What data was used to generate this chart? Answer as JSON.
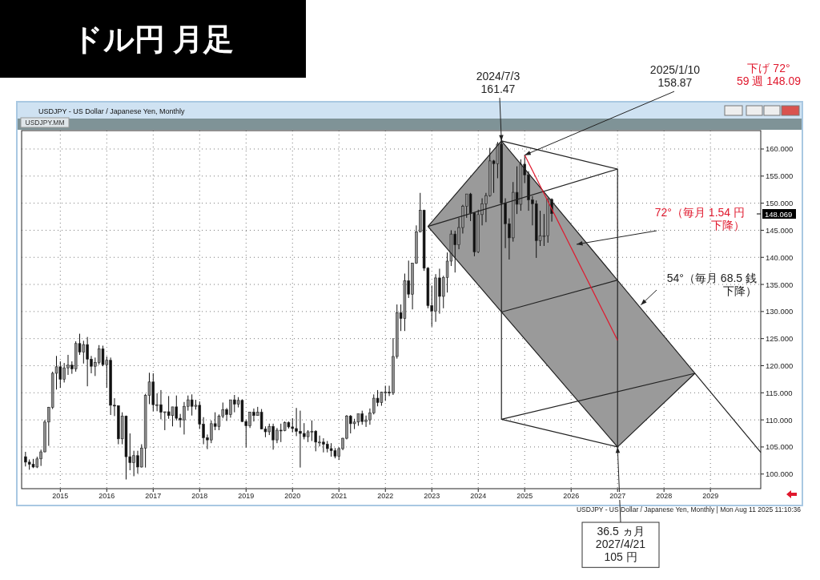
{
  "chart_data": {
    "type": "candlestick",
    "title": "ドル円 月足",
    "subtitle": "USDJPY - US Dollar / Japanese Yen, Monthly",
    "x": [
      "2014-04",
      "2014-05",
      "2014-06",
      "2014-07",
      "2014-08",
      "2014-09",
      "2014-10",
      "2014-11",
      "2014-12",
      "2015-01",
      "2015-02",
      "2015-03",
      "2015-04",
      "2015-05",
      "2015-06",
      "2015-07",
      "2015-08",
      "2015-09",
      "2015-10",
      "2015-11",
      "2015-12",
      "2016-01",
      "2016-02",
      "2016-03",
      "2016-04",
      "2016-05",
      "2016-06",
      "2016-07",
      "2016-08",
      "2016-09",
      "2016-10",
      "2016-11",
      "2016-12",
      "2017-01",
      "2017-02",
      "2017-03",
      "2017-04",
      "2017-05",
      "2017-06",
      "2017-07",
      "2017-08",
      "2017-09",
      "2017-10",
      "2017-11",
      "2017-12",
      "2018-01",
      "2018-02",
      "2018-03",
      "2018-04",
      "2018-05",
      "2018-06",
      "2018-07",
      "2018-08",
      "2018-09",
      "2018-10",
      "2018-11",
      "2018-12",
      "2019-01",
      "2019-02",
      "2019-03",
      "2019-04",
      "2019-05",
      "2019-06",
      "2019-07",
      "2019-08",
      "2019-09",
      "2019-10",
      "2019-11",
      "2019-12",
      "2020-01",
      "2020-02",
      "2020-03",
      "2020-04",
      "2020-05",
      "2020-06",
      "2020-07",
      "2020-08",
      "2020-09",
      "2020-10",
      "2020-11",
      "2020-12",
      "2021-01",
      "2021-02",
      "2021-03",
      "2021-04",
      "2021-05",
      "2021-06",
      "2021-07",
      "2021-08",
      "2021-09",
      "2021-10",
      "2021-11",
      "2021-12",
      "2022-01",
      "2022-02",
      "2022-03",
      "2022-04",
      "2022-05",
      "2022-06",
      "2022-07",
      "2022-08",
      "2022-09",
      "2022-10",
      "2022-11",
      "2022-12",
      "2023-01",
      "2023-02",
      "2023-03",
      "2023-04",
      "2023-05",
      "2023-06",
      "2023-07",
      "2023-08",
      "2023-09",
      "2023-10",
      "2023-11",
      "2023-12",
      "2024-01",
      "2024-02",
      "2024-03",
      "2024-04",
      "2024-05",
      "2024-06",
      "2024-07",
      "2024-08",
      "2024-09",
      "2024-10",
      "2024-11",
      "2024-12",
      "2025-01",
      "2025-02",
      "2025-03",
      "2025-04",
      "2025-05",
      "2025-06",
      "2025-07",
      "2025-08"
    ],
    "ohlc": [
      [
        103.2,
        104.1,
        101.4,
        102.2
      ],
      [
        102.2,
        102.7,
        100.8,
        101.8
      ],
      [
        101.8,
        102.8,
        101.1,
        101.3
      ],
      [
        101.3,
        103.2,
        101.1,
        102.8
      ],
      [
        102.8,
        104.5,
        101.5,
        104.1
      ],
      [
        104.1,
        110.0,
        104.0,
        109.6
      ],
      [
        109.6,
        112.4,
        105.2,
        112.3
      ],
      [
        112.3,
        118.9,
        112.0,
        118.6
      ],
      [
        118.6,
        121.8,
        115.6,
        119.8
      ],
      [
        119.8,
        120.8,
        115.9,
        117.5
      ],
      [
        117.5,
        120.5,
        116.9,
        119.6
      ],
      [
        119.6,
        122.0,
        118.3,
        120.1
      ],
      [
        120.1,
        120.8,
        118.5,
        119.4
      ],
      [
        119.4,
        124.5,
        118.9,
        124.1
      ],
      [
        124.1,
        125.9,
        122.0,
        122.5
      ],
      [
        122.5,
        124.6,
        120.4,
        123.9
      ],
      [
        123.9,
        125.3,
        116.2,
        121.2
      ],
      [
        121.2,
        121.8,
        118.6,
        119.9
      ],
      [
        119.9,
        121.5,
        118.1,
        120.6
      ],
      [
        120.6,
        123.8,
        120.2,
        123.1
      ],
      [
        123.1,
        123.7,
        119.9,
        120.2
      ],
      [
        120.2,
        121.7,
        115.9,
        121.0
      ],
      [
        121.0,
        121.5,
        110.9,
        112.7
      ],
      [
        112.7,
        114.0,
        110.7,
        112.6
      ],
      [
        112.6,
        112.7,
        105.5,
        106.5
      ],
      [
        106.5,
        111.4,
        105.5,
        110.7
      ],
      [
        110.7,
        110.8,
        99.0,
        103.2
      ],
      [
        103.2,
        107.5,
        100.7,
        102.1
      ],
      [
        102.1,
        104.3,
        99.6,
        103.4
      ],
      [
        103.4,
        104.3,
        100.1,
        101.3
      ],
      [
        101.3,
        105.5,
        101.2,
        104.8
      ],
      [
        104.8,
        114.8,
        101.2,
        114.5
      ],
      [
        114.5,
        118.7,
        112.9,
        117.0
      ],
      [
        117.0,
        118.6,
        111.6,
        112.8
      ],
      [
        112.8,
        114.9,
        111.6,
        112.8
      ],
      [
        112.8,
        115.5,
        110.1,
        111.4
      ],
      [
        111.4,
        111.5,
        108.1,
        111.5
      ],
      [
        111.5,
        114.4,
        110.2,
        110.8
      ],
      [
        110.8,
        112.4,
        108.8,
        112.4
      ],
      [
        112.4,
        114.5,
        109.9,
        110.3
      ],
      [
        110.3,
        111.1,
        108.6,
        110.0
      ],
      [
        110.0,
        113.3,
        107.3,
        112.5
      ],
      [
        112.5,
        114.5,
        111.7,
        113.7
      ],
      [
        113.7,
        114.7,
        110.8,
        112.5
      ],
      [
        112.5,
        113.7,
        111.9,
        112.7
      ],
      [
        112.7,
        113.4,
        108.3,
        109.2
      ],
      [
        109.2,
        110.5,
        105.5,
        106.7
      ],
      [
        106.7,
        107.3,
        104.6,
        106.3
      ],
      [
        106.3,
        109.9,
        105.7,
        109.3
      ],
      [
        109.3,
        111.4,
        108.1,
        108.8
      ],
      [
        108.8,
        111.0,
        108.1,
        110.7
      ],
      [
        110.7,
        113.2,
        110.3,
        111.9
      ],
      [
        111.9,
        112.2,
        109.8,
        111.0
      ],
      [
        111.0,
        113.7,
        110.4,
        113.7
      ],
      [
        113.7,
        114.6,
        111.4,
        112.9
      ],
      [
        112.9,
        114.2,
        112.3,
        113.6
      ],
      [
        113.6,
        113.8,
        109.6,
        109.7
      ],
      [
        109.7,
        110.0,
        104.9,
        108.9
      ],
      [
        108.9,
        111.5,
        108.5,
        111.4
      ],
      [
        111.4,
        112.1,
        109.7,
        110.8
      ],
      [
        110.8,
        112.4,
        110.8,
        111.4
      ],
      [
        111.4,
        112.0,
        108.3,
        108.3
      ],
      [
        108.3,
        108.8,
        106.8,
        107.8
      ],
      [
        107.8,
        109.3,
        107.2,
        108.8
      ],
      [
        108.8,
        109.3,
        104.5,
        106.3
      ],
      [
        106.3,
        108.5,
        105.7,
        108.1
      ],
      [
        108.1,
        109.3,
        105.9,
        108.0
      ],
      [
        108.0,
        109.7,
        107.9,
        109.5
      ],
      [
        109.5,
        109.7,
        108.4,
        108.7
      ],
      [
        108.7,
        110.3,
        107.7,
        108.4
      ],
      [
        108.4,
        112.2,
        107.0,
        107.9
      ],
      [
        107.9,
        111.7,
        101.2,
        107.5
      ],
      [
        107.5,
        109.4,
        106.4,
        106.9
      ],
      [
        106.9,
        108.1,
        105.9,
        107.8
      ],
      [
        107.8,
        109.9,
        106.1,
        107.9
      ],
      [
        107.9,
        108.1,
        104.2,
        105.9
      ],
      [
        105.9,
        107.1,
        105.1,
        105.9
      ],
      [
        105.9,
        106.6,
        104.0,
        105.5
      ],
      [
        105.5,
        106.1,
        104.0,
        104.7
      ],
      [
        104.7,
        105.7,
        103.2,
        104.3
      ],
      [
        104.3,
        104.8,
        102.9,
        103.3
      ],
      [
        103.3,
        104.9,
        102.6,
        104.7
      ],
      [
        104.7,
        106.7,
        104.4,
        106.6
      ],
      [
        106.6,
        110.9,
        106.4,
        110.7
      ],
      [
        110.7,
        110.9,
        107.5,
        109.3
      ],
      [
        109.3,
        110.2,
        108.3,
        109.6
      ],
      [
        109.6,
        111.1,
        108.9,
        111.1
      ],
      [
        111.1,
        111.7,
        109.1,
        109.7
      ],
      [
        109.7,
        110.8,
        108.7,
        110.0
      ],
      [
        110.0,
        112.1,
        109.1,
        111.3
      ],
      [
        111.3,
        114.7,
        111.0,
        114.0
      ],
      [
        114.0,
        115.5,
        112.5,
        113.2
      ],
      [
        113.2,
        115.2,
        112.6,
        115.1
      ],
      [
        115.1,
        116.3,
        113.5,
        115.1
      ],
      [
        115.1,
        116.3,
        114.4,
        115.0
      ],
      [
        115.0,
        125.1,
        114.6,
        121.7
      ],
      [
        121.7,
        131.3,
        121.3,
        129.8
      ],
      [
        129.8,
        131.3,
        126.4,
        128.7
      ],
      [
        128.7,
        137.0,
        126.4,
        135.7
      ],
      [
        135.7,
        139.4,
        132.5,
        133.2
      ],
      [
        133.2,
        139.0,
        130.4,
        138.9
      ],
      [
        138.9,
        145.9,
        138.8,
        144.7
      ],
      [
        144.7,
        151.9,
        144.6,
        148.7
      ],
      [
        148.7,
        148.8,
        137.5,
        138.0
      ],
      [
        138.0,
        138.2,
        130.6,
        131.1
      ],
      [
        131.1,
        134.8,
        127.2,
        130.1
      ],
      [
        130.1,
        136.9,
        128.1,
        136.2
      ],
      [
        136.2,
        137.9,
        129.6,
        132.8
      ],
      [
        132.8,
        136.6,
        130.6,
        136.3
      ],
      [
        136.3,
        140.9,
        133.5,
        139.3
      ],
      [
        139.3,
        145.0,
        138.4,
        144.3
      ],
      [
        144.3,
        144.9,
        137.2,
        142.3
      ],
      [
        142.3,
        147.3,
        141.5,
        145.5
      ],
      [
        145.5,
        149.7,
        144.4,
        149.4
      ],
      [
        149.4,
        151.7,
        147.3,
        151.7
      ],
      [
        151.7,
        151.9,
        146.7,
        148.2
      ],
      [
        148.2,
        148.3,
        140.2,
        141.0
      ],
      [
        141.0,
        148.8,
        140.8,
        147.9
      ],
      [
        147.9,
        150.9,
        145.9,
        149.9
      ],
      [
        149.9,
        151.9,
        146.5,
        151.4
      ],
      [
        151.4,
        160.2,
        151.2,
        157.8
      ],
      [
        157.8,
        158.0,
        151.9,
        157.3
      ],
      [
        157.3,
        161.3,
        154.6,
        160.9
      ],
      [
        160.9,
        161.9,
        149.6,
        150.0
      ],
      [
        150.0,
        150.9,
        141.7,
        146.2
      ],
      [
        146.2,
        147.2,
        139.6,
        143.6
      ],
      [
        143.6,
        153.9,
        142.9,
        152.0
      ],
      [
        152.0,
        156.8,
        148.0,
        149.8
      ],
      [
        149.8,
        158.1,
        148.6,
        157.2
      ],
      [
        157.2,
        158.87,
        153.7,
        155.2
      ],
      [
        155.2,
        155.9,
        148.6,
        150.6
      ],
      [
        150.6,
        151.3,
        145.9,
        149.9
      ],
      [
        149.9,
        150.5,
        139.9,
        143.1
      ],
      [
        143.1,
        148.6,
        142.1,
        144.0
      ],
      [
        144.0,
        148.0,
        142.1,
        144.0
      ],
      [
        144.0,
        150.9,
        142.7,
        150.7
      ],
      [
        150.7,
        150.9,
        146.6,
        148.07
      ]
    ],
    "series": [
      {
        "type": "area",
        "x": [
          "2022-12",
          "2024-07",
          "2027-01",
          "2028-09"
        ],
        "values": [
          145.7,
          161.5,
          135.8,
          118.6
        ],
        "color": "#9a9a9a"
      },
      {
        "type": "line",
        "x": [
          "2022-12",
          "2024-07",
          "2030-02"
        ],
        "values": [
          145.7,
          161.5,
          104
        ],
        "color": "#222222"
      },
      {
        "type": "line",
        "x": [
          "2022-12",
          "2027-01",
          "2028-09"
        ],
        "values": [
          145.7,
          105,
          118.6
        ],
        "color": "#222222"
      },
      {
        "type": "line",
        "x": [
          "2022-12",
          "2027-01",
          "2027-01"
        ],
        "values": [
          145.7,
          156.3,
          105
        ],
        "color": "#222222"
      },
      {
        "type": "line",
        "x": [
          "2024-07",
          "2027-01"
        ],
        "values": [
          161.5,
          156.3
        ],
        "color": "#222222"
      },
      {
        "type": "line",
        "x": [
          "2024-07",
          "2024-07"
        ],
        "values": [
          161.5,
          110.1
        ],
        "color": "#222222"
      },
      {
        "type": "line",
        "x": [
          "2027-01",
          "2024-07",
          "2028-09"
        ],
        "values": [
          105,
          110.1,
          118.6
        ],
        "color": "#222222"
      },
      {
        "type": "line",
        "x": [
          "2024-07",
          "2027-01"
        ],
        "values": [
          129.9,
          135.8
        ],
        "color": "#222222"
      },
      {
        "type": "line",
        "x": [
          "2025-01",
          "2027-01"
        ],
        "values": [
          158.9,
          124.7
        ],
        "color": "#e0182d"
      }
    ],
    "xlim": [
      "2014-03",
      "2030-02"
    ],
    "xticks": [
      {
        "value": "2015-01",
        "label": "2015"
      },
      {
        "value": "2016-01",
        "label": "2016"
      },
      {
        "value": "2017-01",
        "label": "2017"
      },
      {
        "value": "2018-01",
        "label": "2018"
      },
      {
        "value": "2019-01",
        "label": "2019"
      },
      {
        "value": "2020-01",
        "label": "2020"
      },
      {
        "value": "2021-01",
        "label": "2021"
      },
      {
        "value": "2022-01",
        "label": "2022"
      },
      {
        "value": "2023-01",
        "label": "2023"
      },
      {
        "value": "2024-01",
        "label": "2024"
      },
      {
        "value": "2025-01",
        "label": "2025"
      },
      {
        "value": "2026-01",
        "label": "2026"
      },
      {
        "value": "2027-01",
        "label": "2027"
      },
      {
        "value": "2028-01",
        "label": "2028"
      },
      {
        "value": "2029-01",
        "label": "2029"
      }
    ],
    "ylim": [
      97.3,
      163.4
    ],
    "yticks": [
      {
        "value": 100,
        "label": "100.000"
      },
      {
        "value": 105,
        "label": "105.000"
      },
      {
        "value": 110,
        "label": "110.000"
      },
      {
        "value": 115,
        "label": "115.000"
      },
      {
        "value": 120,
        "label": "120.000"
      },
      {
        "value": 125,
        "label": "125.000"
      },
      {
        "value": 130,
        "label": "130.000"
      },
      {
        "value": 135,
        "label": "135.000"
      },
      {
        "value": 140,
        "label": "140.000"
      },
      {
        "value": 145,
        "label": "145.000"
      },
      {
        "value": 150,
        "label": "150.000"
      },
      {
        "value": 155,
        "label": "155.000"
      },
      {
        "value": 160,
        "label": "160.000"
      }
    ],
    "grid": true,
    "annotations": [
      {
        "text": "2024/7/3\n161.47",
        "x": "2024-07",
        "y": 161.47
      },
      {
        "text": "2025/1/10\n158.87",
        "x": "2025-01",
        "y": 158.87
      },
      "下げ 72°\n59 週 148.09",
      "72°（毎月 1.54 円下降）",
      {
        "text": "54°（毎月 68.5 銭下降）",
        "x": "2027-07",
        "y": 131.2
      },
      {
        "text": "36.5 ヵ月\n2027/4/21\n105 円",
        "x": "2027-01",
        "y": 105
      },
      "USDJPY - US Dollar / Japanese Yen, Monthly | Mon Aug 11 2025 11:10:36",
      "USDJPY.MM",
      "148.069"
    ]
  }
}
